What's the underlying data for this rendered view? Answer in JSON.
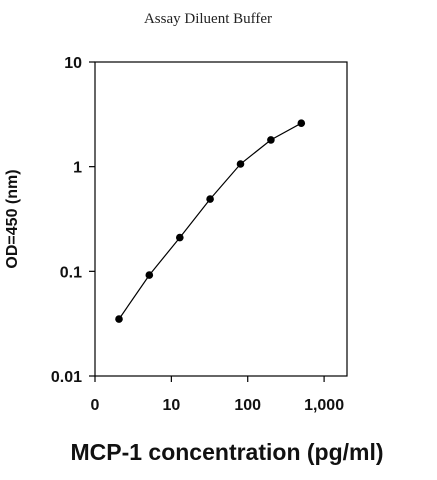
{
  "chart_data": {
    "type": "line",
    "title": "Assay Diluent Buffer",
    "xlabel": "MCP-1 concentration (pg/ml)",
    "ylabel": "OD=450 (nm)",
    "x_scale": "log",
    "y_scale": "log",
    "x_tick_labels": [
      "0",
      "10",
      "100",
      "1,000"
    ],
    "y_tick_labels": [
      "10",
      "1",
      "0.1",
      "0.01"
    ],
    "ylim": [
      0.01,
      10
    ],
    "grid": false,
    "series": [
      {
        "marker": "circle",
        "points": [
          {
            "x": 2.06,
            "y": 0.035
          },
          {
            "x": 5.14,
            "y": 0.092
          },
          {
            "x": 12.9,
            "y": 0.21
          },
          {
            "x": 32.2,
            "y": 0.49
          },
          {
            "x": 80.4,
            "y": 1.06
          },
          {
            "x": 201,
            "y": 1.8
          },
          {
            "x": 503,
            "y": 2.6
          }
        ]
      }
    ],
    "colors": {
      "line": "#000000",
      "marker": "#000000",
      "axis": "#000000"
    }
  }
}
